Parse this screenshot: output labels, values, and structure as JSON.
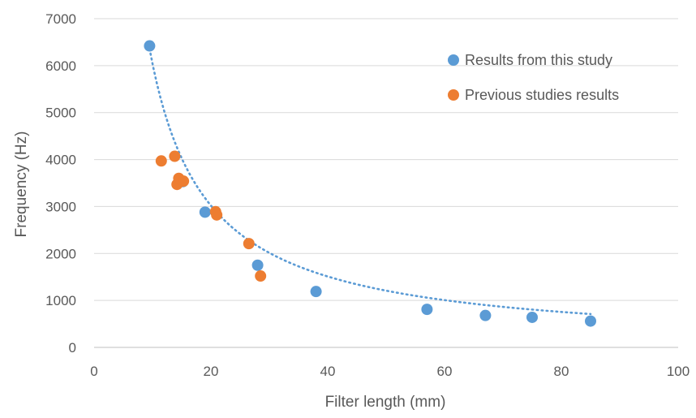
{
  "chart_data": {
    "type": "scatter",
    "xlabel": "Filter length (mm)",
    "ylabel": "Frequency (Hz)",
    "xlim": [
      0,
      100
    ],
    "ylim": [
      0,
      7000
    ],
    "xticks": [
      0,
      20,
      40,
      60,
      80,
      100
    ],
    "yticks": [
      0,
      1000,
      2000,
      3000,
      4000,
      5000,
      6000,
      7000
    ],
    "grid": "horizontal",
    "legend_position": "top-right",
    "series": [
      {
        "name": "Results from this study",
        "color": "#5B9BD5",
        "points": [
          {
            "x": 9.5,
            "y": 6420
          },
          {
            "x": 15.2,
            "y": 3530
          },
          {
            "x": 19.0,
            "y": 2880
          },
          {
            "x": 28.0,
            "y": 1750
          },
          {
            "x": 38.0,
            "y": 1190
          },
          {
            "x": 57.0,
            "y": 810
          },
          {
            "x": 67.0,
            "y": 680
          },
          {
            "x": 75.0,
            "y": 640
          },
          {
            "x": 85.0,
            "y": 560
          }
        ]
      },
      {
        "name": "Previous studies results",
        "color": "#ED7D31",
        "points": [
          {
            "x": 11.5,
            "y": 3970
          },
          {
            "x": 13.8,
            "y": 4070
          },
          {
            "x": 14.2,
            "y": 3470
          },
          {
            "x": 14.5,
            "y": 3600
          },
          {
            "x": 15.3,
            "y": 3540
          },
          {
            "x": 20.8,
            "y": 2890
          },
          {
            "x": 21.0,
            "y": 2820
          },
          {
            "x": 26.5,
            "y": 2210
          },
          {
            "x": 28.5,
            "y": 1520
          }
        ]
      }
    ],
    "trendline": {
      "type": "power",
      "color": "#5B9BD5",
      "style": "dotted",
      "coefficient": 60400,
      "exponent": -1.0,
      "x_range": [
        9.5,
        85
      ]
    }
  }
}
